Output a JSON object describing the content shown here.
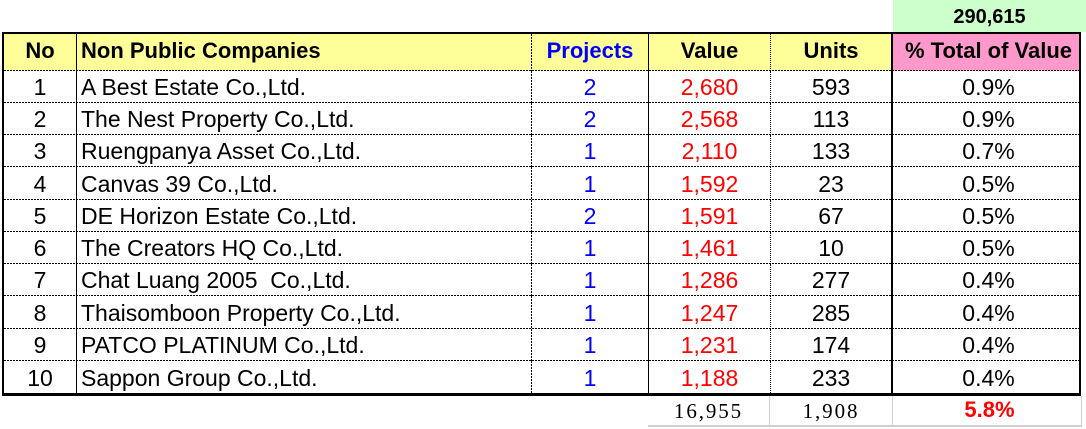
{
  "summary": {
    "grand_total_value": "290,615"
  },
  "table": {
    "headers": {
      "no": "No",
      "companies": "Non Public Companies",
      "projects": "Projects",
      "value": "Value",
      "units": "Units",
      "pct": "% Total of Value"
    },
    "rows": [
      {
        "no": "1",
        "company": "A Best Estate Co.,Ltd.",
        "projects": "2",
        "value": "2,680",
        "units": "593",
        "pct": "0.9%"
      },
      {
        "no": "2",
        "company": "The Nest Property Co.,Ltd.",
        "projects": "2",
        "value": "2,568",
        "units": "113",
        "pct": "0.9%"
      },
      {
        "no": "3",
        "company": "Ruengpanya Asset Co.,Ltd.",
        "projects": "1",
        "value": "2,110",
        "units": "133",
        "pct": "0.7%"
      },
      {
        "no": "4",
        "company": "Canvas 39 Co.,Ltd.",
        "projects": "1",
        "value": "1,592",
        "units": "23",
        "pct": "0.5%"
      },
      {
        "no": "5",
        "company": "DE Horizon Estate Co.,Ltd.",
        "projects": "2",
        "value": "1,591",
        "units": "67",
        "pct": "0.5%"
      },
      {
        "no": "6",
        "company": "The Creators HQ Co.,Ltd.",
        "projects": "1",
        "value": "1,461",
        "units": "10",
        "pct": "0.5%"
      },
      {
        "no": "7",
        "company": "Chat Luang 2005  Co.,Ltd.",
        "projects": "1",
        "value": "1,286",
        "units": "277",
        "pct": "0.4%"
      },
      {
        "no": "8",
        "company": "Thaisomboon Property Co.,Ltd.",
        "projects": "1",
        "value": "1,247",
        "units": "285",
        "pct": "0.4%"
      },
      {
        "no": "9",
        "company": "PATCO PLATINUM Co.,Ltd.",
        "projects": "1",
        "value": "1,231",
        "units": "174",
        "pct": "0.4%"
      },
      {
        "no": "10",
        "company": "Sappon Group Co.,Ltd.",
        "projects": "1",
        "value": "1,188",
        "units": "233",
        "pct": "0.4%"
      }
    ],
    "totals": {
      "value": "16,955",
      "units": "1,908",
      "pct": "5.8%"
    }
  },
  "colors": {
    "header_fill": "#FFFF99",
    "summary_fill": "#CCFFCC",
    "pct_header_fill": "#FF99CC",
    "projects_text": "#0000FF",
    "value_text": "#FF0000",
    "totals_pct_text": "#FF0000",
    "gridline_gray": "#CFCFCF"
  },
  "chart_data": {
    "type": "table",
    "title": "Top 10 Non Public Companies by Value",
    "columns": [
      "No",
      "Non Public Companies",
      "Projects",
      "Value",
      "Units",
      "% Total of Value"
    ],
    "rows": [
      [
        1,
        "A Best Estate Co.,Ltd.",
        2,
        2680,
        593,
        "0.9%"
      ],
      [
        2,
        "The Nest Property Co.,Ltd.",
        2,
        2568,
        113,
        "0.9%"
      ],
      [
        3,
        "Ruengpanya Asset Co.,Ltd.",
        1,
        2110,
        133,
        "0.7%"
      ],
      [
        4,
        "Canvas 39 Co.,Ltd.",
        1,
        1592,
        23,
        "0.5%"
      ],
      [
        5,
        "DE Horizon Estate Co.,Ltd.",
        2,
        1591,
        67,
        "0.5%"
      ],
      [
        6,
        "The Creators HQ Co.,Ltd.",
        1,
        1461,
        10,
        "0.5%"
      ],
      [
        7,
        "Chat Luang 2005  Co.,Ltd.",
        1,
        1286,
        277,
        "0.4%"
      ],
      [
        8,
        "Thaisomboon Property Co.,Ltd.",
        1,
        1247,
        285,
        "0.4%"
      ],
      [
        9,
        "PATCO PLATINUM Co.,Ltd.",
        1,
        1231,
        174,
        "0.4%"
      ],
      [
        10,
        "Sappon Group Co.,Ltd.",
        1,
        1188,
        233,
        "0.4%"
      ]
    ],
    "totals_row": [
      "",
      "",
      "",
      16955,
      1908,
      "5.8%"
    ],
    "grand_total_value": 290615
  }
}
